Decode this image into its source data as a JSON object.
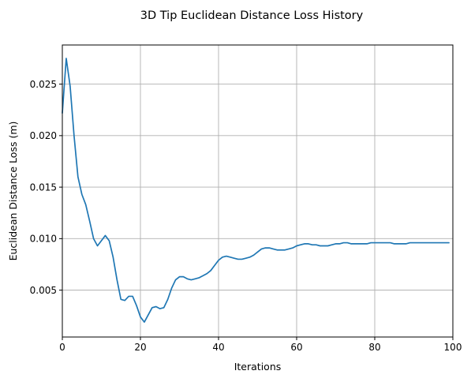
{
  "chart_data": {
    "type": "line",
    "title": "3D Tip Euclidean Distance Loss History",
    "xlabel": "Iterations",
    "ylabel": "Euclidean Distance Loss (m)",
    "xlim": [
      0,
      100
    ],
    "ylim": [
      0.00045,
      0.0288
    ],
    "xticks": [
      "0",
      "20",
      "40",
      "60",
      "80",
      "100"
    ],
    "xtick_values": [
      0,
      20,
      40,
      60,
      80,
      100
    ],
    "yticks": [
      "0.005",
      "0.010",
      "0.015",
      "0.020",
      "0.025"
    ],
    "ytick_values": [
      0.005,
      0.01,
      0.015,
      0.02,
      0.025
    ],
    "grid": true,
    "series": [
      {
        "color": "#1f77b4",
        "x": [
          0,
          1,
          2,
          3,
          4,
          5,
          6,
          7,
          8,
          9,
          10,
          11,
          12,
          13,
          14,
          15,
          16,
          17,
          18,
          19,
          20,
          21,
          22,
          23,
          24,
          25,
          26,
          27,
          28,
          29,
          30,
          31,
          32,
          33,
          34,
          35,
          36,
          37,
          38,
          39,
          40,
          41,
          42,
          43,
          44,
          45,
          46,
          47,
          48,
          49,
          50,
          51,
          52,
          53,
          54,
          55,
          56,
          57,
          58,
          59,
          60,
          61,
          62,
          63,
          64,
          65,
          66,
          67,
          68,
          69,
          70,
          71,
          72,
          73,
          74,
          75,
          76,
          77,
          78,
          79,
          80,
          81,
          82,
          83,
          84,
          85,
          86,
          87,
          88,
          89,
          90,
          91,
          92,
          93,
          94,
          95,
          96,
          97,
          98,
          99
        ],
        "y": [
          0.0222,
          0.0275,
          0.0248,
          0.02,
          0.016,
          0.0143,
          0.0133,
          0.0117,
          0.01,
          0.0093,
          0.0098,
          0.0103,
          0.0098,
          0.0082,
          0.006,
          0.0041,
          0.004,
          0.0044,
          0.0044,
          0.0035,
          0.0024,
          0.0019,
          0.0026,
          0.0033,
          0.0034,
          0.0032,
          0.0033,
          0.0041,
          0.0052,
          0.006,
          0.0063,
          0.0063,
          0.0061,
          0.006,
          0.0061,
          0.0062,
          0.0064,
          0.0066,
          0.0069,
          0.0074,
          0.0079,
          0.0082,
          0.0083,
          0.0082,
          0.0081,
          0.008,
          0.008,
          0.0081,
          0.0082,
          0.0084,
          0.0087,
          0.009,
          0.0091,
          0.0091,
          0.009,
          0.0089,
          0.0089,
          0.0089,
          0.009,
          0.0091,
          0.0093,
          0.0094,
          0.0095,
          0.0095,
          0.0094,
          0.0094,
          0.0093,
          0.0093,
          0.0093,
          0.0094,
          0.0095,
          0.0095,
          0.0096,
          0.0096,
          0.0095,
          0.0095,
          0.0095,
          0.0095,
          0.0095,
          0.0096,
          0.0096,
          0.0096,
          0.0096,
          0.0096,
          0.0096,
          0.0095,
          0.0095,
          0.0095,
          0.0095,
          0.0096,
          0.0096,
          0.0096,
          0.0096,
          0.0096,
          0.0096,
          0.0096,
          0.0096,
          0.0096,
          0.0096,
          0.0096
        ]
      }
    ]
  }
}
